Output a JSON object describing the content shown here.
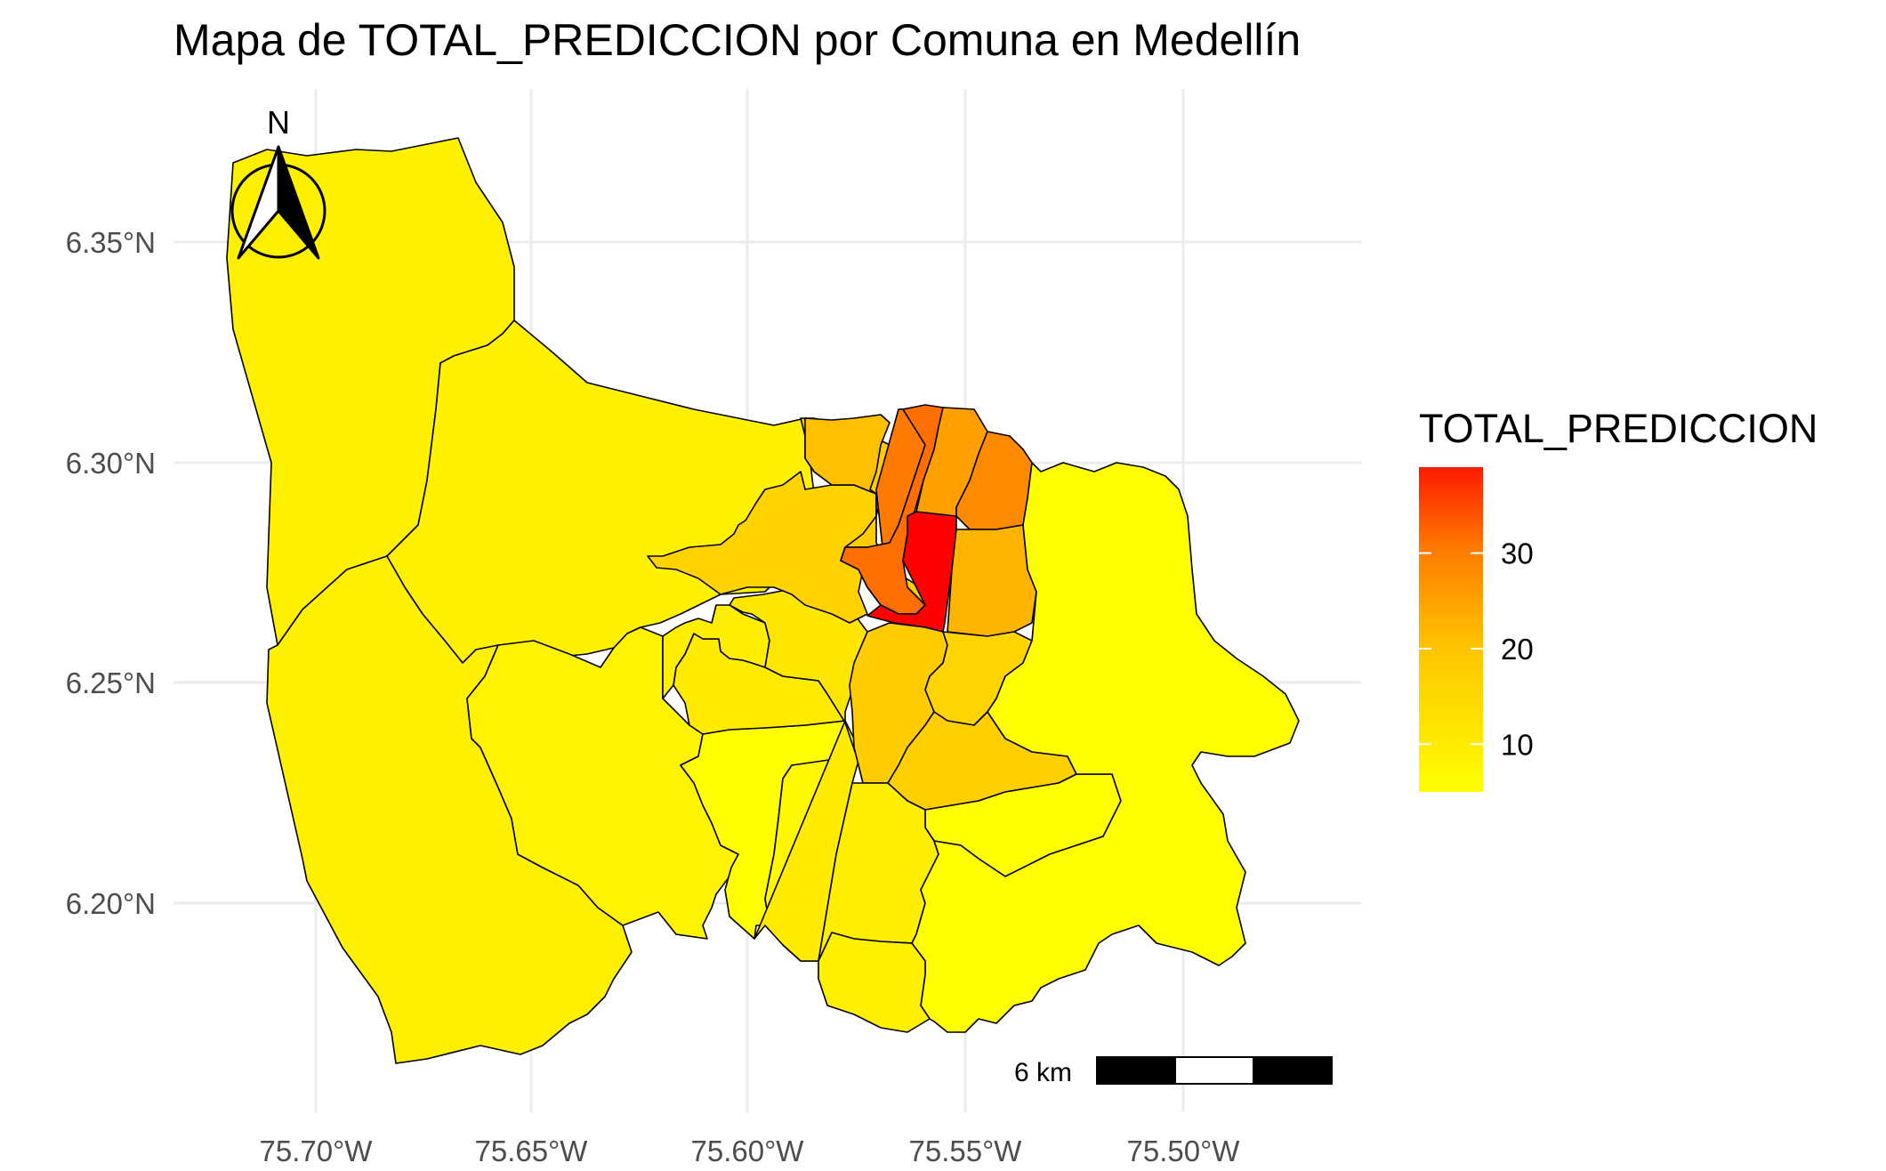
{
  "map": {
    "title": "Mapa de TOTAL_PREDICCION por Comuna en Medellín",
    "x_ticks": [
      "75.70°W",
      "75.65°W",
      "75.60°W",
      "75.55°W",
      "75.50°W"
    ],
    "y_ticks": [
      "6.35°N",
      "6.30°N",
      "6.25°N",
      "6.20°N"
    ],
    "north_label": "N",
    "scale_label": "6 km",
    "legend": {
      "title": "TOTAL_PREDICCION",
      "ticks": [
        "30",
        "20",
        "10"
      ],
      "tick_values": [
        30,
        20,
        10
      ],
      "min_value": 5,
      "max_value": 39,
      "color_low": "#FFFF00",
      "color_mid": "#FFA500",
      "color_high": "#FF0000"
    },
    "colors": {
      "grid": "#EBEBEB",
      "border": "#000000"
    }
  }
}
